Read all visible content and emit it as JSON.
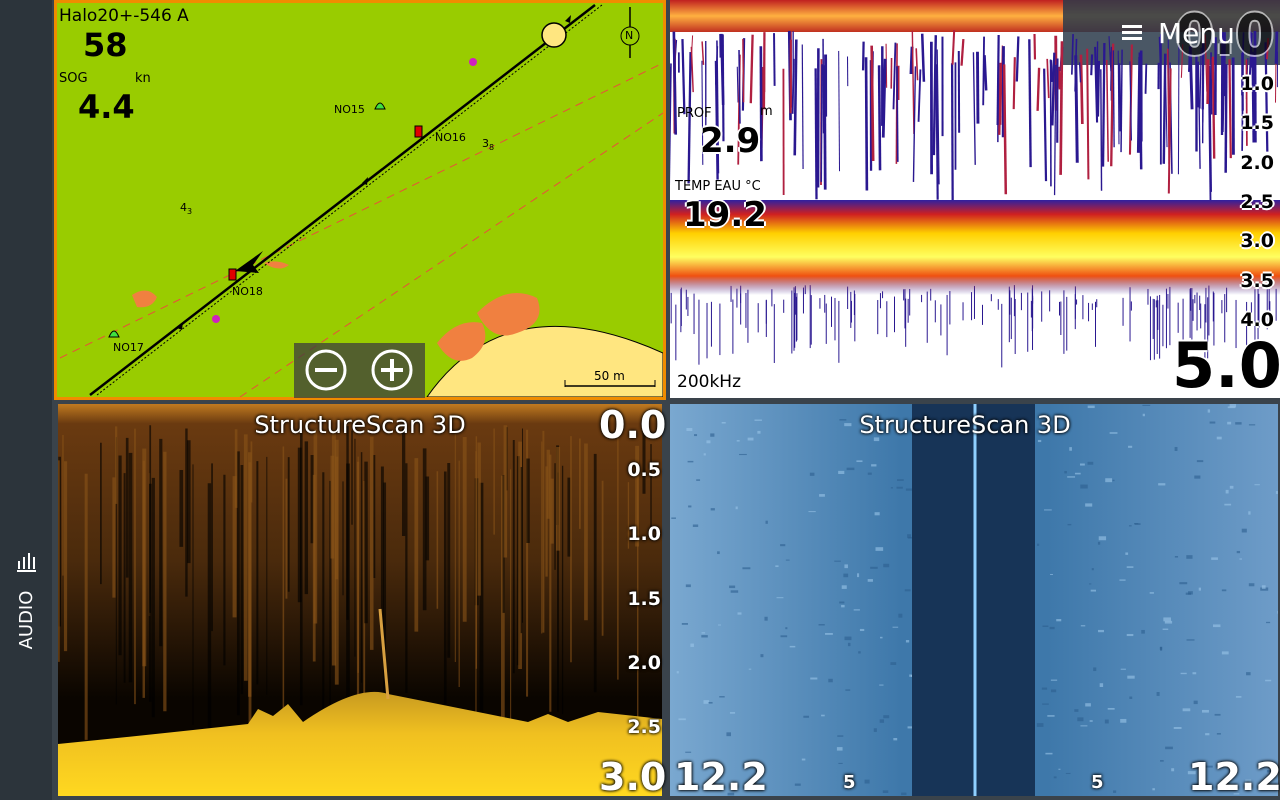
{
  "sidebar": {
    "label": "AUDIO"
  },
  "chart_panel": {
    "source": "Halo20+-546 A",
    "heading": "58",
    "sog_label": "SOG",
    "sog_unit": "kn",
    "sog": "4.4",
    "markers": [
      "NO15",
      "NO16",
      "NO18",
      "NO17"
    ],
    "soundings": [
      {
        "main": "3",
        "sub": "8"
      },
      {
        "main": "4",
        "sub": "3"
      }
    ],
    "north": "N",
    "scale": "50 m"
  },
  "sonar_panel": {
    "menu": "Menu",
    "range_top": "0.0",
    "depth_scale": [
      "1.0",
      "1.5",
      "2.0",
      "2.5",
      "3.0",
      "3.5",
      "4.0"
    ],
    "depth_label": "PROF",
    "depth_unit": "m",
    "depth": "2.9",
    "temp_label": "TEMP EAU °C",
    "temp": "19.2",
    "frequency": "200kHz",
    "range_bottom": "5.0"
  },
  "downscan_panel": {
    "title": "StructureScan 3D",
    "range_top": "0.0",
    "depth_scale": [
      "0.5",
      "1.0",
      "1.5",
      "2.0",
      "2.5"
    ],
    "range_bottom": "3.0"
  },
  "sidescan_panel": {
    "title": "StructureScan 3D",
    "range_left": "12.2",
    "range_right": "12.2",
    "marks": [
      "5",
      "5"
    ]
  }
}
